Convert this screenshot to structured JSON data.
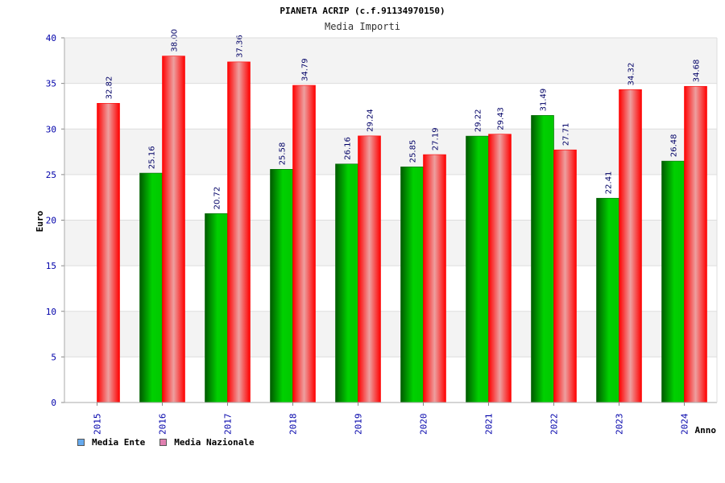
{
  "colors": {
    "ente": "#00c000",
    "ente_dark": "#006400",
    "nazionale": "#ff0000",
    "nazionale_light": "#f0a0a0",
    "legend_ente": "#66aaee",
    "legend_nazionale": "#e080b0",
    "tick_text": "#0000aa",
    "value_text": "#000066",
    "band": "#f3f3f3",
    "grid": "#dddddd"
  },
  "chart_data": {
    "type": "bar",
    "title": "PIANETA ACRIP (c.f.91134970150)",
    "subtitle": "Media Importi",
    "xlabel": "Anno",
    "ylabel": "Euro",
    "ylim": [
      0,
      40
    ],
    "yticks": [
      "0",
      "5",
      "10",
      "15",
      "20",
      "25",
      "30",
      "35",
      "40"
    ],
    "categories": [
      "2015",
      "2016",
      "2017",
      "2018",
      "2019",
      "2020",
      "2021",
      "2022",
      "2023",
      "2024"
    ],
    "series": [
      {
        "name": "Media Ente",
        "values": [
          null,
          25.16,
          20.72,
          25.58,
          26.16,
          25.85,
          29.22,
          31.49,
          22.41,
          26.48
        ],
        "labels": [
          "",
          "25.16",
          "20.72",
          "25.58",
          "26.16",
          "25.85",
          "29.22",
          "31.49",
          "22.41",
          "26.48"
        ]
      },
      {
        "name": "Media Nazionale",
        "values": [
          32.82,
          38.0,
          37.36,
          34.79,
          29.24,
          27.19,
          29.43,
          27.71,
          34.32,
          34.68
        ],
        "labels": [
          "32.82",
          "38.00",
          "37.36",
          "34.79",
          "29.24",
          "27.19",
          "29.43",
          "27.71",
          "34.32",
          "34.68"
        ]
      }
    ],
    "grid": true,
    "legend_position": "bottom-left"
  }
}
